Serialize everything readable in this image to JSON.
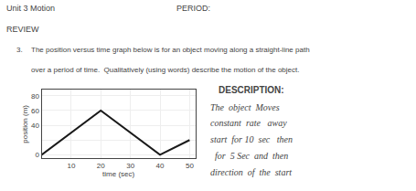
{
  "chart_data": {
    "type": "line",
    "title": "Unit 3 Motion",
    "subtitle": "REVIEW",
    "annotations": [
      "PERIOD:",
      "3.",
      "The position versus time graph below is for an object moving along a straight-line path",
      "over a period of time.  Qualitatively (using words) describe the motion of the object.",
      "DESCRIPTION:",
      "The  object  Moves",
      "constant  rate   away",
      "start  for 10  sec   then",
      "  for  5 Sec  and  then",
      "direction  of  the  start"
    ],
    "x_label": "time (sec)",
    "y_label": "position (m)",
    "x": [
      0,
      20,
      40,
      50
    ],
    "values": [
      0,
      60,
      0,
      20
    ],
    "color": "#1a1a1a",
    "xlim": [
      0,
      52
    ],
    "ylim": [
      -5,
      88
    ],
    "xticks": [
      10,
      20,
      30,
      40,
      50
    ],
    "yticks": [
      0,
      {
        "value": 20,
        "label": ""
      },
      40,
      60,
      80
    ],
    "grid": true
  }
}
